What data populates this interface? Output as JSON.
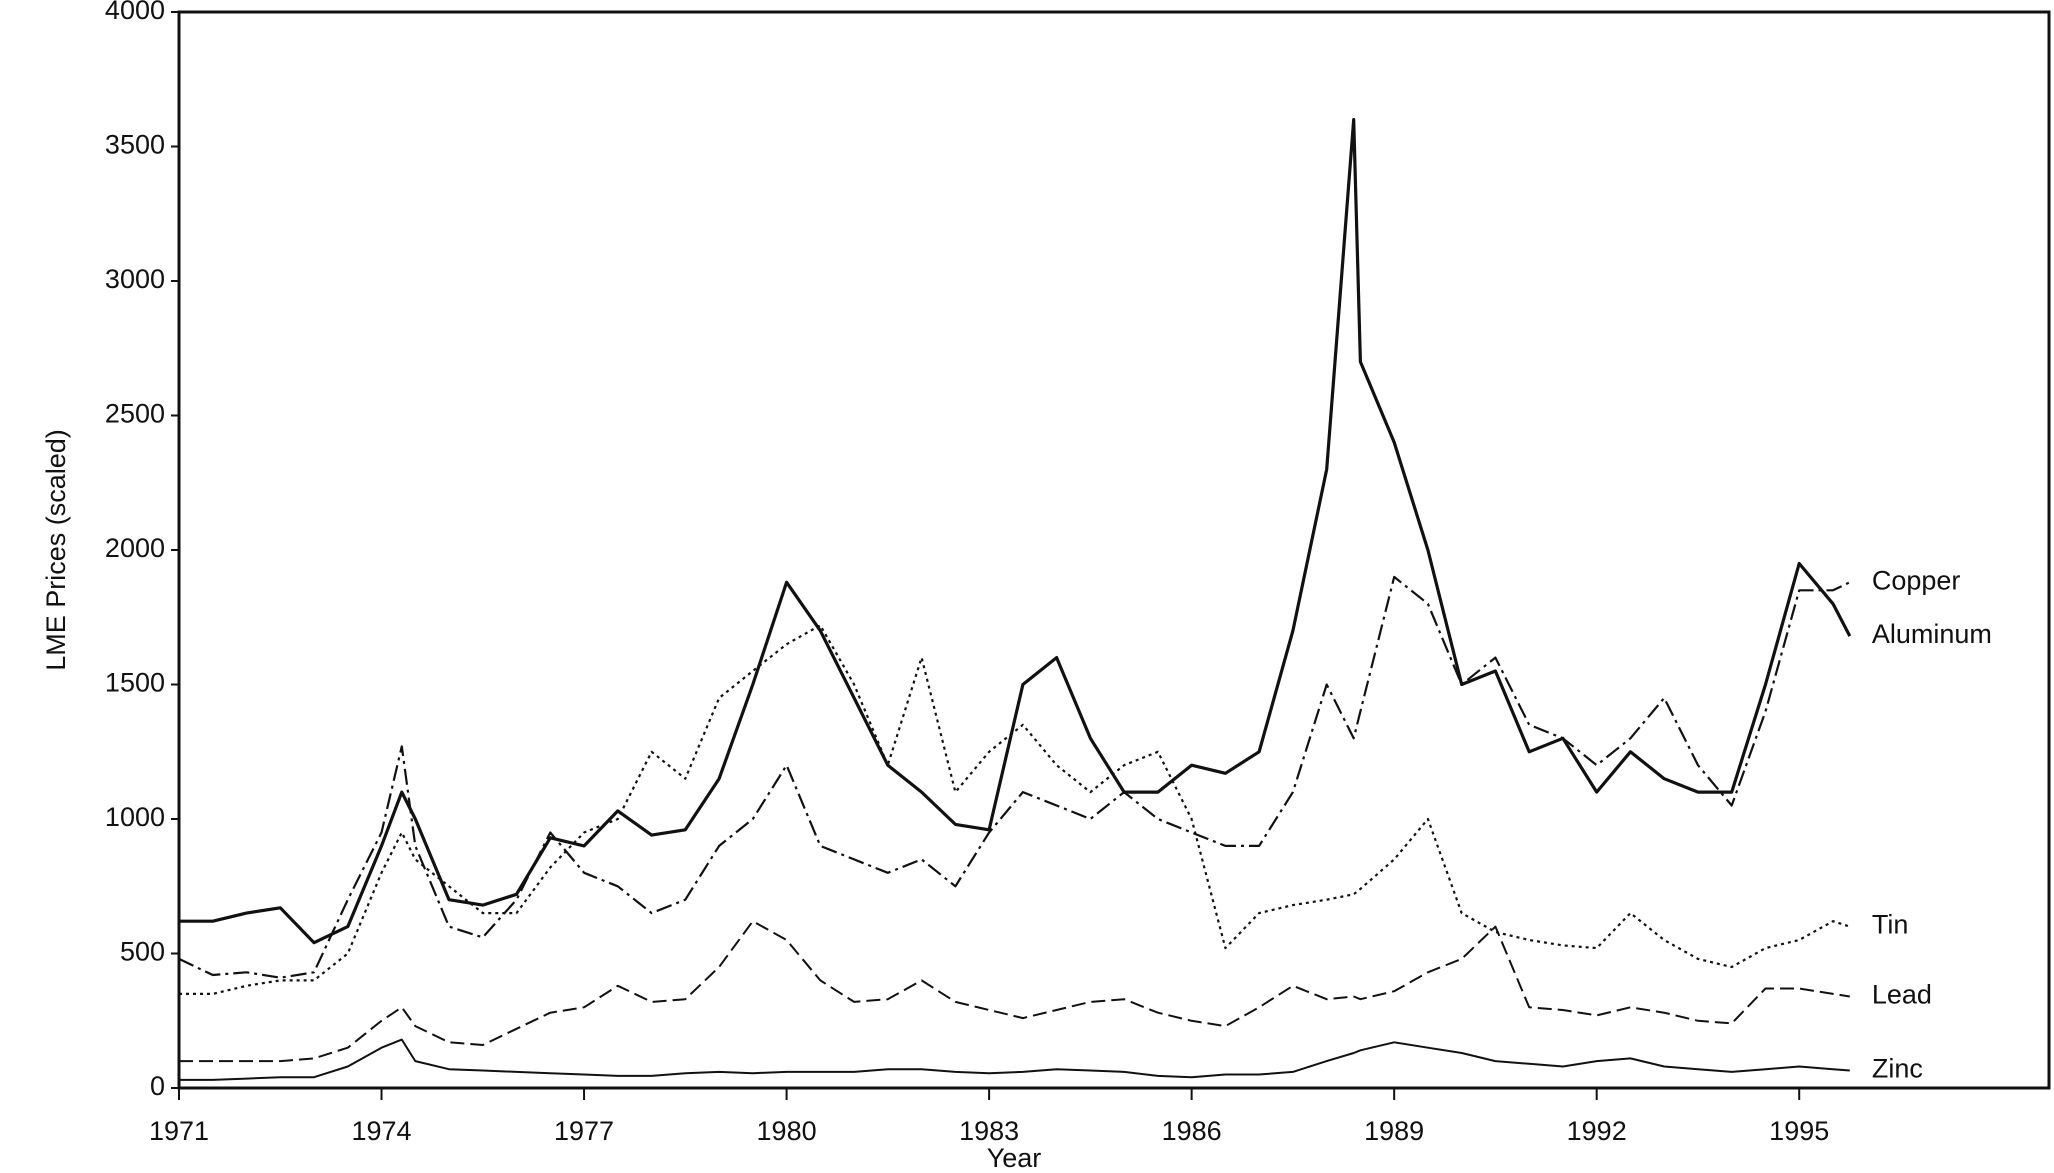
{
  "chart_data": {
    "type": "line",
    "x_label": "Year",
    "y_label": "LME Prices (scaled)",
    "x": [
      1971,
      1971.5,
      1972,
      1972.5,
      1973,
      1973.5,
      1974,
      1974.3,
      1974.5,
      1975,
      1975.5,
      1976,
      1976.5,
      1977,
      1977.5,
      1978,
      1978.5,
      1979,
      1979.5,
      1980,
      1980.5,
      1981,
      1981.5,
      1982,
      1982.5,
      1983,
      1983.5,
      1984,
      1984.5,
      1985,
      1985.5,
      1986,
      1986.5,
      1987,
      1987.5,
      1988,
      1988.4,
      1988.5,
      1989,
      1989.5,
      1990,
      1990.5,
      1991,
      1991.5,
      1992,
      1992.5,
      1993,
      1993.5,
      1994,
      1994.5,
      1995,
      1995.5,
      1995.75
    ],
    "series": [
      {
        "name": "Copper",
        "color": "#111111",
        "style": "dashdot",
        "values": [
          480,
          420,
          430,
          410,
          430,
          700,
          950,
          1270,
          900,
          600,
          560,
          700,
          950,
          800,
          750,
          650,
          700,
          900,
          1000,
          1200,
          900,
          850,
          800,
          850,
          750,
          950,
          1100,
          1050,
          1000,
          1100,
          1000,
          950,
          900,
          900,
          1100,
          1500,
          1300,
          1400,
          1900,
          1800,
          1500,
          1600,
          1350,
          1300,
          1200,
          1300,
          1450,
          1200,
          1050,
          1400,
          1850,
          1850,
          1880
        ]
      },
      {
        "name": "Aluminum",
        "color": "#111111",
        "style": "bold",
        "values": [
          620,
          620,
          650,
          670,
          540,
          600,
          900,
          1100,
          1000,
          700,
          680,
          720,
          930,
          900,
          1030,
          940,
          960,
          1150,
          1500,
          1880,
          1700,
          1450,
          1200,
          1100,
          980,
          960,
          1500,
          1600,
          1300,
          1100,
          1100,
          1200,
          1170,
          1250,
          1700,
          2300,
          3600,
          2700,
          2400,
          2000,
          1500,
          1550,
          1250,
          1300,
          1100,
          1250,
          1150,
          1100,
          1100,
          1500,
          1950,
          1800,
          1680
        ]
      },
      {
        "name": "Tin",
        "color": "#111111",
        "style": "dotted",
        "values": [
          350,
          350,
          380,
          400,
          400,
          500,
          800,
          950,
          850,
          750,
          650,
          650,
          820,
          950,
          1000,
          1250,
          1150,
          1450,
          1550,
          1650,
          1720,
          1500,
          1200,
          1600,
          1100,
          1250,
          1350,
          1200,
          1100,
          1200,
          1250,
          1000,
          520,
          650,
          680,
          700,
          720,
          740,
          850,
          1000,
          650,
          580,
          550,
          530,
          520,
          650,
          550,
          480,
          450,
          520,
          550,
          620,
          600
        ]
      },
      {
        "name": "Lead",
        "color": "#111111",
        "style": "dashed",
        "values": [
          100,
          100,
          100,
          100,
          110,
          150,
          250,
          300,
          230,
          170,
          160,
          220,
          280,
          300,
          380,
          320,
          330,
          450,
          620,
          550,
          400,
          320,
          330,
          400,
          320,
          290,
          260,
          290,
          320,
          330,
          280,
          250,
          230,
          300,
          380,
          330,
          340,
          330,
          360,
          430,
          480,
          600,
          300,
          290,
          270,
          300,
          280,
          250,
          240,
          370,
          370,
          350,
          340
        ]
      },
      {
        "name": "Zinc",
        "color": "#111111",
        "style": "solid",
        "values": [
          30,
          30,
          35,
          40,
          40,
          80,
          150,
          180,
          100,
          70,
          65,
          60,
          55,
          50,
          45,
          45,
          55,
          60,
          55,
          60,
          60,
          60,
          70,
          70,
          60,
          55,
          60,
          70,
          65,
          60,
          45,
          40,
          50,
          50,
          60,
          100,
          130,
          140,
          170,
          150,
          130,
          100,
          90,
          80,
          100,
          110,
          80,
          70,
          60,
          70,
          80,
          70,
          65
        ]
      }
    ],
    "xlim": [
      1971,
      1998.7
    ],
    "xticks": [
      1971,
      1974,
      1977,
      1980,
      1983,
      1986,
      1989,
      1992,
      1995
    ],
    "ylim": [
      0,
      4000
    ],
    "yticks": [
      0,
      500,
      1000,
      1500,
      2000,
      2500,
      3000,
      3500,
      4000
    ],
    "grid": false,
    "legend": "line-end"
  }
}
